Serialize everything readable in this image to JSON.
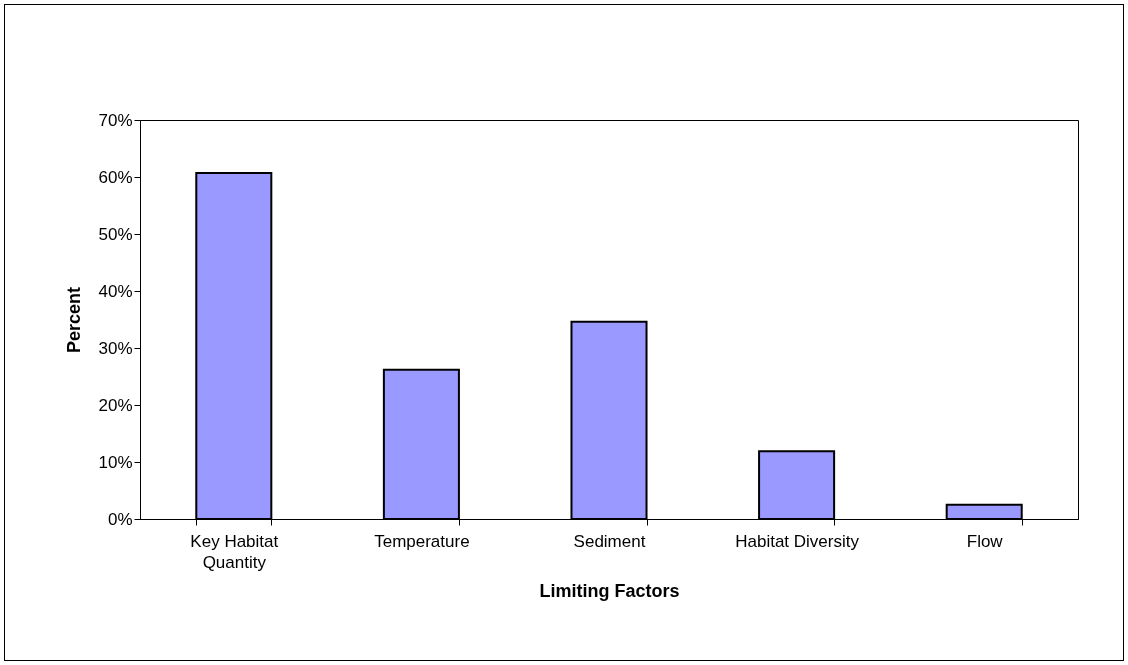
{
  "chart_data": {
    "type": "bar",
    "xlabel": "Limiting Factors",
    "ylabel": "Percent",
    "categories": [
      "Key Habitat Quantity",
      "Temperature",
      "Sediment",
      "Habitat Diversity",
      "Flow"
    ],
    "values": [
      60.7,
      26.2,
      34.6,
      11.9,
      2.5
    ],
    "color": "#9999ff",
    "ylim": [
      0,
      70
    ],
    "yticks": [
      {
        "value": 0,
        "label": "0%"
      },
      {
        "value": 10,
        "label": "10%"
      },
      {
        "value": 20,
        "label": "20%"
      },
      {
        "value": 30,
        "label": "30%"
      },
      {
        "value": 40,
        "label": "40%"
      },
      {
        "value": 50,
        "label": "50%"
      },
      {
        "value": 60,
        "label": "60%"
      },
      {
        "value": 70,
        "label": "70%"
      }
    ],
    "grid": false
  }
}
